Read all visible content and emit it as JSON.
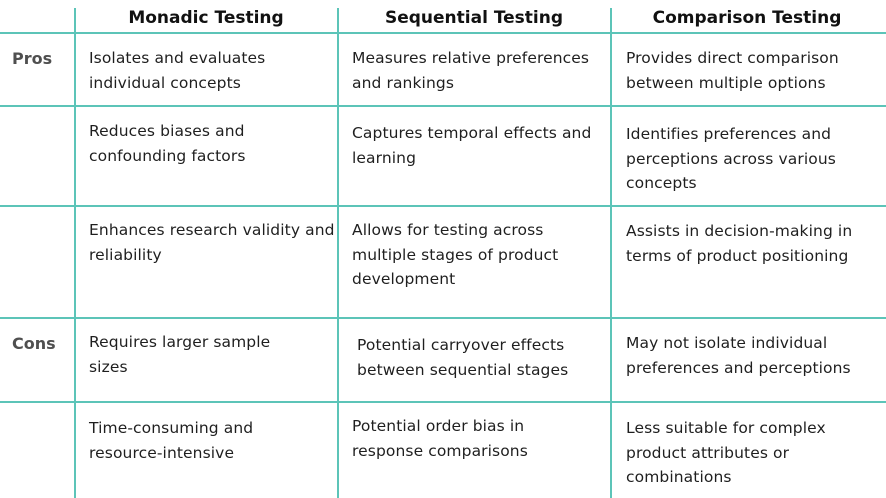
{
  "table": {
    "headers": [
      "Monadic Testing",
      "Sequential Testing",
      "Comparison Testing"
    ],
    "row_groups": [
      "Pros",
      "Cons"
    ],
    "rows": [
      {
        "group": "Pros",
        "cells": [
          "Isolates and evaluates individual concepts",
          "Measures relative preferences and rankings",
          "Provides direct comparison between multiple options"
        ]
      },
      {
        "group": "",
        "cells": [
          "Reduces biases and confounding factors",
          "Captures temporal effects and learning",
          "Identifies preferences and perceptions across various concepts"
        ]
      },
      {
        "group": "",
        "cells": [
          "Enhances research validity and reliability",
          "Allows for testing across multiple stages of product development",
          "Assists in decision-making in terms of product positioning"
        ]
      },
      {
        "group": "Cons",
        "cells": [
          "Requires larger sample sizes",
          "Potential carryover effects between sequential stages",
          "May not isolate individual preferences and perceptions"
        ]
      },
      {
        "group": "",
        "cells": [
          "Time-consuming and resource-intensive",
          "Potential order bias in response comparisons",
          "Less suitable for complex product attributes or combinations"
        ]
      }
    ]
  },
  "colors": {
    "grid": "#5cc4b8",
    "header_text": "#111111",
    "row_label_text": "#4f4f4f",
    "cell_text": "#1f1f1f"
  }
}
